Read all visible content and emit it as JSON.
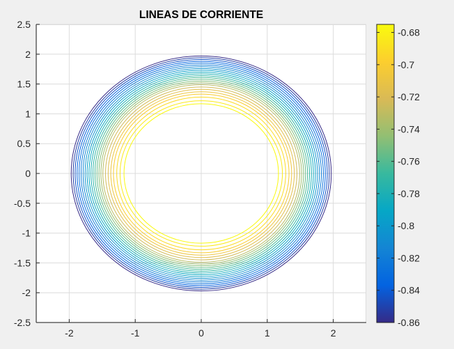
{
  "chart_data": {
    "type": "contour",
    "title": "LINEAS DE CORRIENTE",
    "xlabel": "",
    "ylabel": "",
    "xlim": [
      -2.5,
      2.5
    ],
    "ylim": [
      -2.5,
      2.5
    ],
    "xticks": [
      "-2",
      "-1",
      "0",
      "1",
      "2"
    ],
    "xtick_values": [
      -2,
      -1,
      0,
      1,
      2
    ],
    "yticks": [
      "2.5",
      "2",
      "1.5",
      "1",
      "0.5",
      "0",
      "-0.5",
      "-1",
      "-1.5",
      "-2",
      "-2.5"
    ],
    "ytick_values": [
      2.5,
      2,
      1.5,
      1,
      0.5,
      0,
      -0.5,
      -1,
      -1.5,
      -2,
      -2.5
    ],
    "grid": true,
    "colormap": "parula",
    "contours": [
      {
        "level": -0.86,
        "rx": 1.97,
        "ry": 1.97
      },
      {
        "level": -0.852,
        "rx": 1.94,
        "ry": 1.94
      },
      {
        "level": -0.844,
        "rx": 1.91,
        "ry": 1.91
      },
      {
        "level": -0.836,
        "rx": 1.88,
        "ry": 1.88
      },
      {
        "level": -0.828,
        "rx": 1.85,
        "ry": 1.85
      },
      {
        "level": -0.82,
        "rx": 1.82,
        "ry": 1.82
      },
      {
        "level": -0.812,
        "rx": 1.79,
        "ry": 1.79
      },
      {
        "level": -0.804,
        "rx": 1.76,
        "ry": 1.76
      },
      {
        "level": -0.796,
        "rx": 1.73,
        "ry": 1.73
      },
      {
        "level": -0.788,
        "rx": 1.7,
        "ry": 1.7
      },
      {
        "level": -0.78,
        "rx": 1.67,
        "ry": 1.67
      },
      {
        "level": -0.772,
        "rx": 1.64,
        "ry": 1.64
      },
      {
        "level": -0.764,
        "rx": 1.61,
        "ry": 1.61
      },
      {
        "level": -0.756,
        "rx": 1.58,
        "ry": 1.58
      },
      {
        "level": -0.748,
        "rx": 1.55,
        "ry": 1.55
      },
      {
        "level": -0.74,
        "rx": 1.52,
        "ry": 1.52
      },
      {
        "level": -0.732,
        "rx": 1.49,
        "ry": 1.49
      },
      {
        "level": -0.724,
        "rx": 1.45,
        "ry": 1.45
      },
      {
        "level": -0.716,
        "rx": 1.41,
        "ry": 1.41
      },
      {
        "level": -0.708,
        "rx": 1.37,
        "ry": 1.37
      },
      {
        "level": -0.7,
        "rx": 1.33,
        "ry": 1.33
      },
      {
        "level": -0.692,
        "rx": 1.28,
        "ry": 1.28
      },
      {
        "level": -0.684,
        "rx": 1.23,
        "ry": 1.22
      },
      {
        "level": -0.676,
        "rx": 1.17,
        "ry": 1.17
      }
    ],
    "colorbar": {
      "range": [
        -0.86,
        -0.675
      ],
      "ticks": [
        "-0.68",
        "-0.7",
        "-0.72",
        "-0.74",
        "-0.76",
        "-0.78",
        "-0.8",
        "-0.82",
        "-0.84",
        "-0.86"
      ],
      "tick_values": [
        -0.68,
        -0.7,
        -0.72,
        -0.74,
        -0.76,
        -0.78,
        -0.8,
        -0.82,
        -0.84,
        -0.86
      ]
    }
  },
  "colors": {
    "figure_bg": "#f0f0f0",
    "axes_bg": "#ffffff",
    "grid": "#dcdcdc",
    "axis": "#262626",
    "parula": [
      "#352a87",
      "#0363e1",
      "#1485d4",
      "#06a7c6",
      "#38b99e",
      "#92bf73",
      "#d9ba56",
      "#fcce2e",
      "#f9fb0e"
    ]
  }
}
